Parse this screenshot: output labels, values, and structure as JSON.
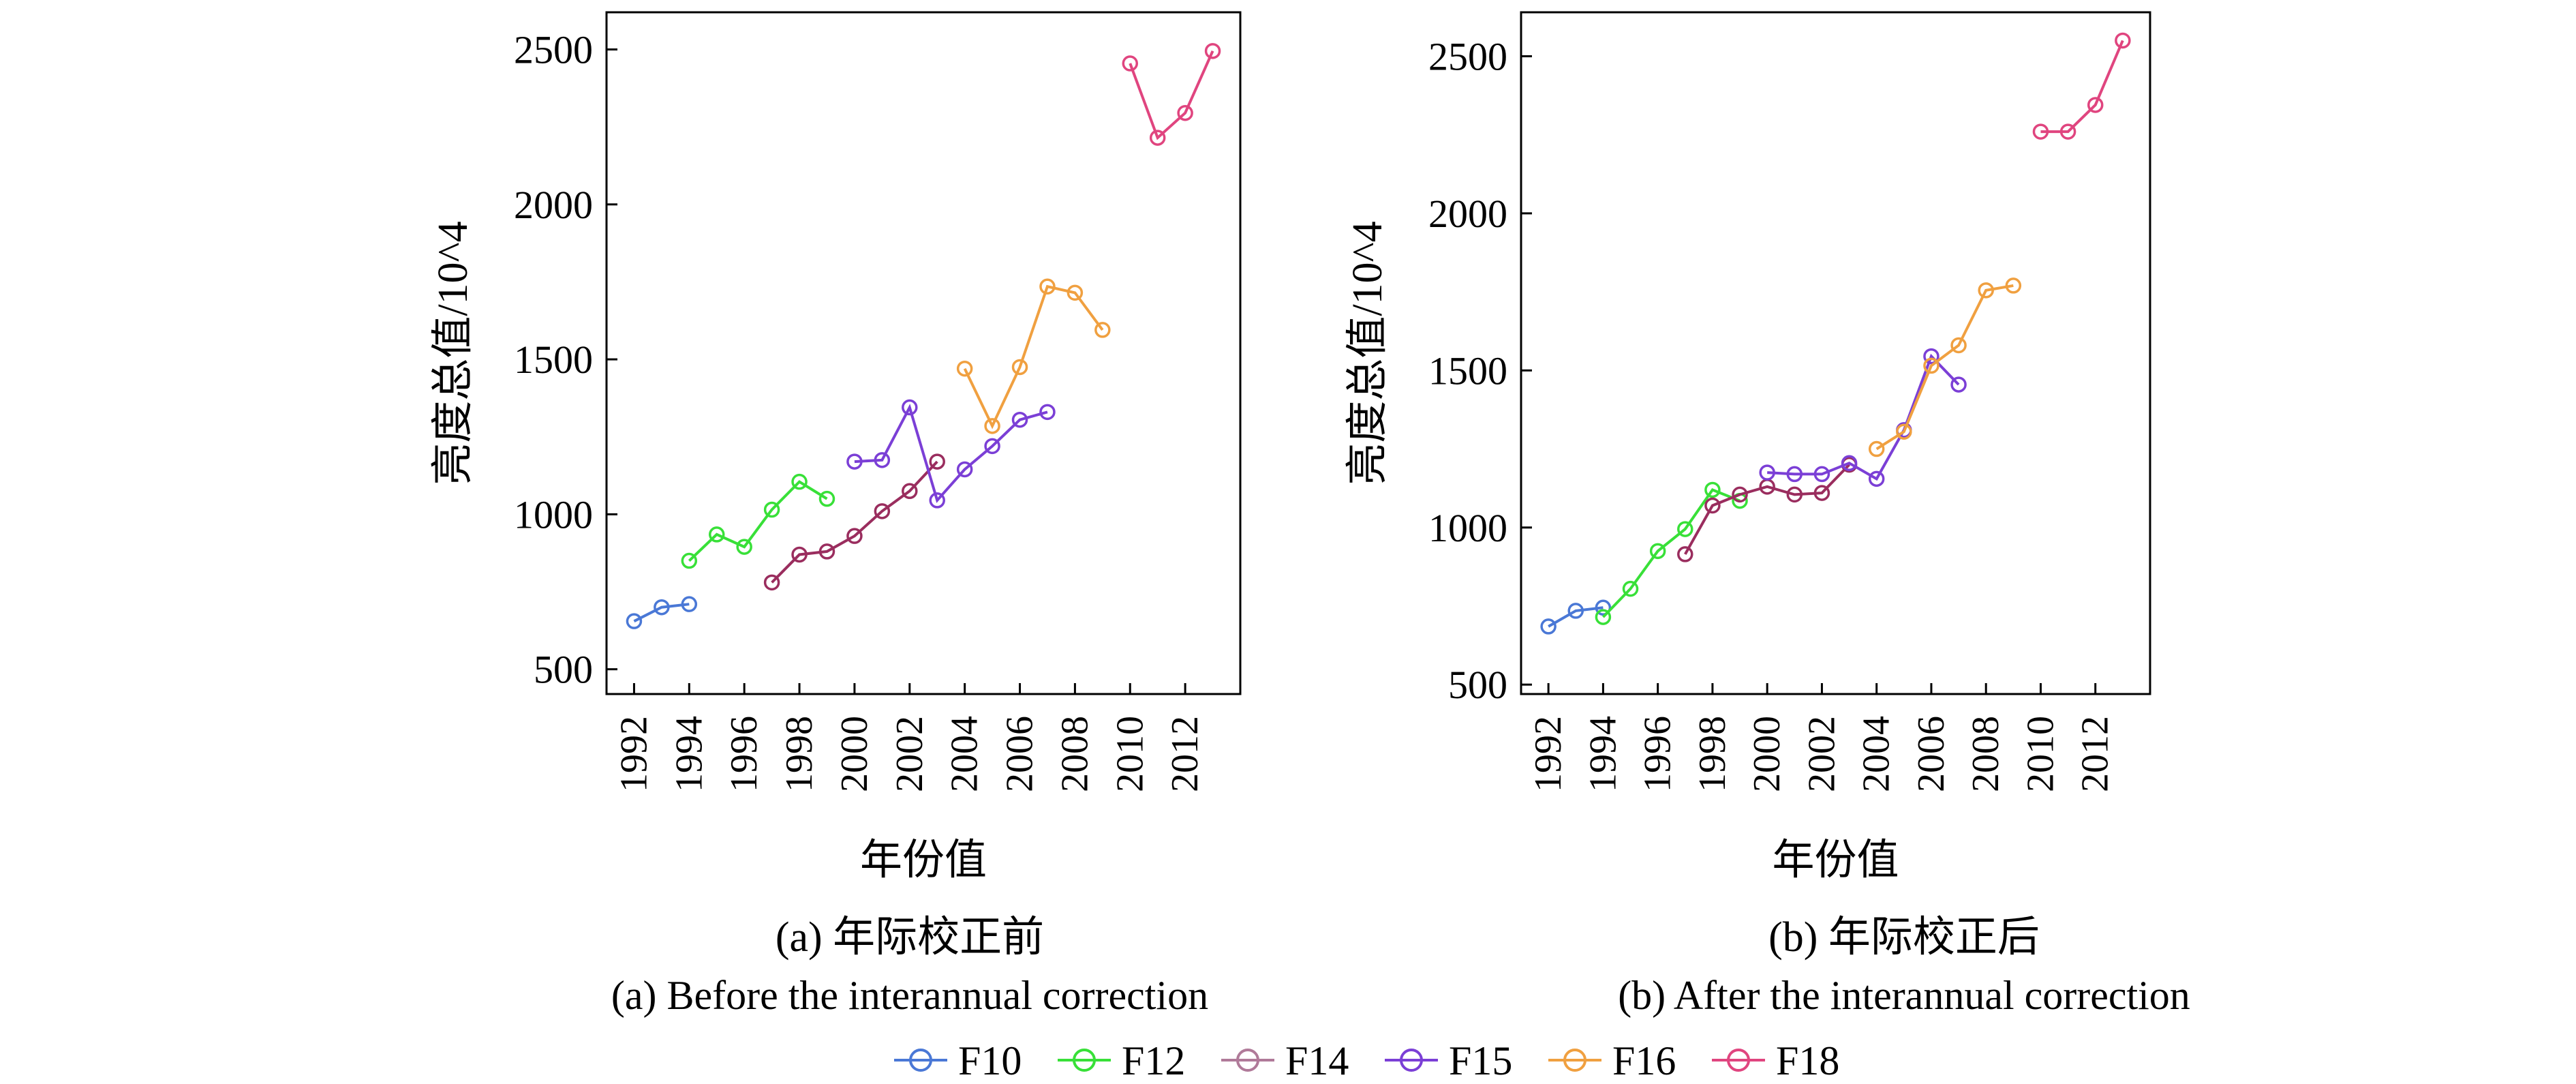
{
  "chart_data": [
    {
      "type": "line",
      "caption_cn": "(a) 年际校正前",
      "caption_en": "(a) Before the interannual correction",
      "xlabel": "年份值",
      "ylabel": "亮度总值/10^4",
      "xlim": [
        1991,
        2014
      ],
      "ylim": [
        420,
        2620
      ],
      "x_ticks": [
        1992,
        1994,
        1996,
        1998,
        2000,
        2002,
        2004,
        2006,
        2008,
        2010,
        2012
      ],
      "x_tick_labels": [
        "1992",
        "1994",
        "1996",
        "1998",
        "2000",
        "2002",
        "2004",
        "2006",
        "2008",
        "2010",
        "2012"
      ],
      "y_ticks": [
        500,
        1000,
        1500,
        2000,
        2500
      ],
      "y_tick_labels": [
        "500",
        "1000",
        "1500",
        "2000",
        "2500"
      ],
      "series": [
        {
          "name": "F10",
          "color": "#4a78d6",
          "x": [
            1992,
            1993,
            1994
          ],
          "values": [
            655,
            700,
            710
          ]
        },
        {
          "name": "F12",
          "color": "#38e038",
          "x": [
            1994,
            1995,
            1996,
            1997,
            1998,
            1999
          ],
          "values": [
            850,
            935,
            895,
            1015,
            1105,
            1050
          ]
        },
        {
          "name": "F14",
          "color": "#9a2d5e",
          "x": [
            1997,
            1998,
            1999,
            2000,
            2001,
            2002,
            2003
          ],
          "values": [
            780,
            870,
            880,
            930,
            1010,
            1075,
            1170
          ]
        },
        {
          "name": "F15",
          "color": "#7b3fd6",
          "x": [
            2000,
            2001,
            2002,
            2003,
            2004,
            2005,
            2006,
            2007
          ],
          "values": [
            1170,
            1175,
            1345,
            1045,
            1145,
            1220,
            1305,
            1330
          ]
        },
        {
          "name": "F16",
          "color": "#f0a040",
          "x": [
            2004,
            2005,
            2006,
            2007,
            2008,
            2009
          ],
          "values": [
            1470,
            1285,
            1475,
            1735,
            1715,
            1595
          ]
        },
        {
          "name": "F18",
          "color": "#e0457f",
          "x": [
            2010,
            2011,
            2012,
            2013
          ],
          "values": [
            2455,
            2215,
            2295,
            2495
          ]
        }
      ]
    },
    {
      "type": "line",
      "caption_cn": "(b) 年际校正后",
      "caption_en": "(b) After the interannual correction",
      "xlabel": "年份值",
      "ylabel": "亮度总值/10^4",
      "xlim": [
        1991,
        2014
      ],
      "ylim": [
        470,
        2640
      ],
      "x_ticks": [
        1992,
        1994,
        1996,
        1998,
        2000,
        2002,
        2004,
        2006,
        2008,
        2010,
        2012
      ],
      "x_tick_labels": [
        "1992",
        "1994",
        "1996",
        "1998",
        "2000",
        "2002",
        "2004",
        "2006",
        "2008",
        "2010",
        "2012"
      ],
      "y_ticks": [
        500,
        1000,
        1500,
        2000,
        2500
      ],
      "y_tick_labels": [
        "500",
        "1000",
        "1500",
        "2000",
        "2500"
      ],
      "series": [
        {
          "name": "F10",
          "color": "#4a78d6",
          "x": [
            1992,
            1993,
            1994
          ],
          "values": [
            685,
            735,
            745
          ]
        },
        {
          "name": "F12",
          "color": "#38e038",
          "x": [
            1994,
            1995,
            1996,
            1997,
            1998,
            1999
          ],
          "values": [
            715,
            805,
            925,
            995,
            1120,
            1085
          ]
        },
        {
          "name": "F14",
          "color": "#9a2d5e",
          "x": [
            1997,
            1998,
            1999,
            2000,
            2001,
            2002,
            2003
          ],
          "values": [
            915,
            1070,
            1105,
            1130,
            1105,
            1110,
            1200
          ]
        },
        {
          "name": "F15",
          "color": "#7b3fd6",
          "x": [
            2000,
            2001,
            2002,
            2003,
            2004,
            2005,
            2006,
            2007
          ],
          "values": [
            1175,
            1170,
            1170,
            1205,
            1155,
            1310,
            1545,
            1455
          ]
        },
        {
          "name": "F16",
          "color": "#f0a040",
          "x": [
            2004,
            2005,
            2006,
            2007,
            2008,
            2009
          ],
          "values": [
            1250,
            1305,
            1515,
            1580,
            1755,
            1770
          ]
        },
        {
          "name": "F18",
          "color": "#e0457f",
          "x": [
            2010,
            2011,
            2012,
            2013
          ],
          "values": [
            2260,
            2260,
            2345,
            2550
          ]
        }
      ]
    }
  ],
  "legend": {
    "position": "bottom-center",
    "entries": [
      {
        "name": "F10",
        "color": "#4a78d6"
      },
      {
        "name": "F12",
        "color": "#38e038"
      },
      {
        "name": "F14",
        "color": "#b07a99"
      },
      {
        "name": "F15",
        "color": "#7b3fd6"
      },
      {
        "name": "F16",
        "color": "#f0a040"
      },
      {
        "name": "F18",
        "color": "#e0457f"
      }
    ]
  }
}
